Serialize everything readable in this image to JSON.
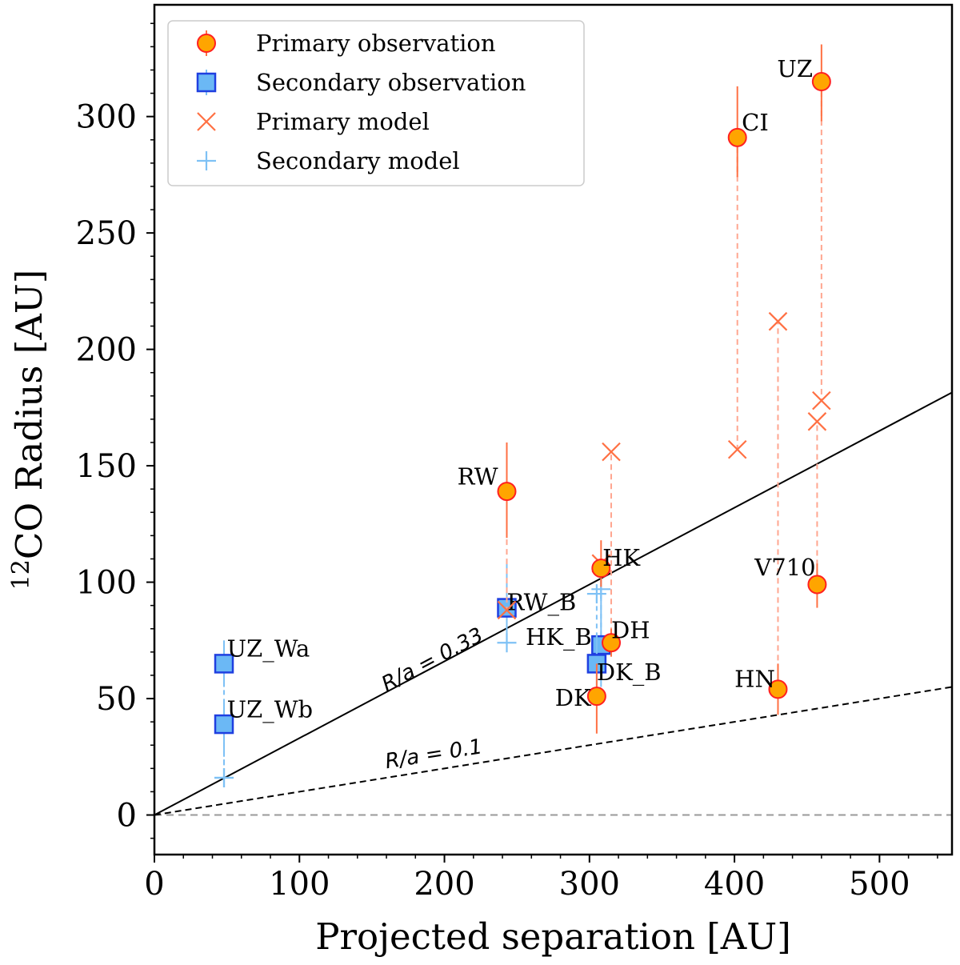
{
  "chart_data": {
    "type": "scatter",
    "xlabel": "Projected separation [AU]",
    "ylabel_sup": "12",
    "ylabel_rest": "CO Radius [AU]",
    "xlim": [
      0,
      550
    ],
    "ylim": [
      -17,
      348
    ],
    "xticks": [
      0,
      100,
      200,
      300,
      400,
      500
    ],
    "yticks": [
      0,
      50,
      100,
      150,
      200,
      250,
      300
    ],
    "legend": {
      "position": "top-left",
      "entries": [
        {
          "key": "primary_obs",
          "label": "Primary observation"
        },
        {
          "key": "secondary_obs",
          "label": "Secondary observation"
        },
        {
          "key": "primary_model",
          "label": "Primary model"
        },
        {
          "key": "secondary_model",
          "label": "Secondary model"
        }
      ]
    },
    "colors": {
      "primary_fill": "#ffa500",
      "primary_edge": "#ff2020",
      "primary_model": "#ff7043",
      "primary_dash": "#ffa690",
      "secondary_fill": "#6bb8f5",
      "secondary_edge": "#1f3fe0",
      "secondary_model": "#7ec1f5",
      "axis": "#000000",
      "zero_line": "#9a9a9a"
    },
    "lines": [
      {
        "label": "R/a = 0.33",
        "slope": 0.33,
        "style": "solid",
        "label_x": 160,
        "label_y": 53
      },
      {
        "label": "R/a = 0.1",
        "slope": 0.1,
        "style": "dashed",
        "label_x": 160,
        "label_y": 20
      }
    ],
    "primary": [
      {
        "name": "RW",
        "x": 243,
        "y": 139,
        "err_lo": 20,
        "err_hi": 21,
        "model": 88,
        "lx": 237,
        "ly": 142,
        "anchor": "end"
      },
      {
        "name": "HK",
        "x": 308,
        "y": 106,
        "err_lo": 8,
        "err_hi": 12,
        "model": 108,
        "lx": 309,
        "ly": 107,
        "anchor": "start"
      },
      {
        "name": "DH",
        "x": 315,
        "y": 74,
        "err_lo": 6,
        "err_hi": 6,
        "model": 156,
        "lx": 315,
        "ly": 76,
        "anchor": "start"
      },
      {
        "name": "DK",
        "x": 305,
        "y": 51,
        "err_lo": 16,
        "err_hi": 14,
        "model": null,
        "lx": 301,
        "ly": 47,
        "anchor": "end"
      },
      {
        "name": "CI",
        "x": 402,
        "y": 291,
        "err_lo": 17,
        "err_hi": 22,
        "model": 157,
        "lx": 405,
        "ly": 294,
        "anchor": "start"
      },
      {
        "name": "UZ",
        "x": 460,
        "y": 315,
        "err_lo": 17,
        "err_hi": 16,
        "model": 178,
        "lx": 454,
        "ly": 317,
        "anchor": "end"
      },
      {
        "name": "HN",
        "x": 430,
        "y": 54,
        "err_lo": 11,
        "err_hi": 11,
        "model": 212,
        "lx": 428,
        "ly": 55,
        "anchor": "end"
      },
      {
        "name": "V710",
        "x": 457,
        "y": 99,
        "err_lo": 10,
        "err_hi": 9,
        "model": 169,
        "lx": 456,
        "ly": 103,
        "anchor": "end"
      }
    ],
    "secondary": [
      {
        "name": "RW_B",
        "x": 243,
        "y": 89,
        "err_lo": 14,
        "err_hi": 21,
        "model": 74,
        "lx": 243,
        "ly": 88,
        "anchor": "start"
      },
      {
        "name": "HK_B",
        "x": 308,
        "y": 73,
        "err_lo": 18,
        "err_hi": 28,
        "model": 97,
        "lx": 256,
        "ly": 73,
        "anchor": "start"
      },
      {
        "name": "DK_B",
        "x": 305,
        "y": 65,
        "err_lo": 10,
        "err_hi": 12,
        "model": 95,
        "lx": 305,
        "ly": 58,
        "anchor": "start"
      },
      {
        "name": "UZ_Wa",
        "x": 48,
        "y": 65,
        "err_lo": 10,
        "err_hi": 10,
        "model": 16,
        "lx": 50,
        "ly": 68,
        "anchor": "start"
      },
      {
        "name": "UZ_Wb",
        "x": 48,
        "y": 39,
        "err_lo": 14,
        "err_hi": 10,
        "model": 16,
        "lx": 50,
        "ly": 42,
        "anchor": "start"
      }
    ]
  }
}
